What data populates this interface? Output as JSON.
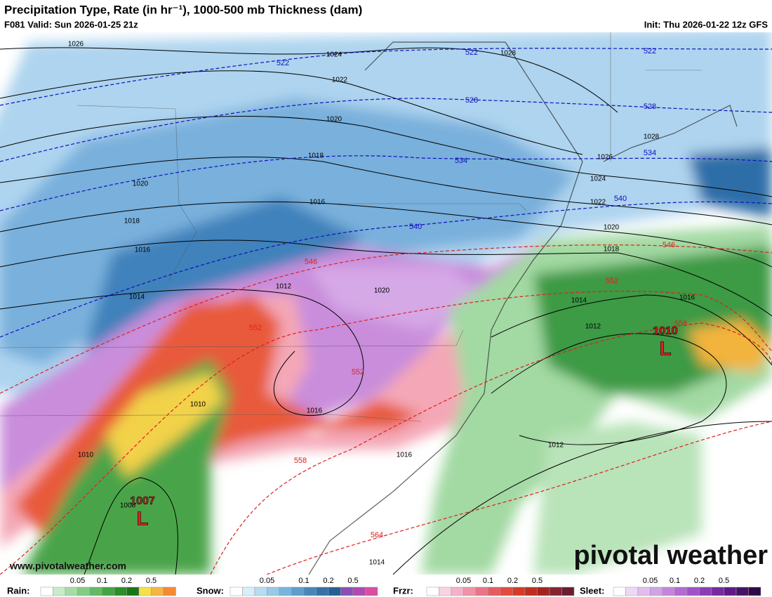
{
  "header": {
    "title": "Precipitation Type, Rate (in hr⁻¹), 1000-500 mb Thickness (dam)",
    "valid": "F081 Valid: Sun 2026-01-25 21z",
    "init": "Init: Thu 2026-01-22 12z GFS"
  },
  "map": {
    "isobar_labels": [
      "1026",
      "1024",
      "1022",
      "1020",
      "1018",
      "1020",
      "1018",
      "1016",
      "1016",
      "1014",
      "1012",
      "1020",
      "1028",
      "1028",
      "1026",
      "1024",
      "1022",
      "1020",
      "1018",
      "1016",
      "1014",
      "1012",
      "1012",
      "1010",
      "1010",
      "1008",
      "1016",
      "1016",
      "1014"
    ],
    "thickness_labels": [
      {
        "label": "522",
        "color": "#1010c0"
      },
      {
        "label": "522",
        "color": "#1010c0"
      },
      {
        "label": "522",
        "color": "#1010c0"
      },
      {
        "label": "528",
        "color": "#1010c0"
      },
      {
        "label": "528",
        "color": "#1010c0"
      },
      {
        "label": "534",
        "color": "#1010c0"
      },
      {
        "label": "534",
        "color": "#1010c0"
      },
      {
        "label": "540",
        "color": "#1010c0"
      },
      {
        "label": "540",
        "color": "#1010c0"
      },
      {
        "label": "546",
        "color": "#e02020"
      },
      {
        "label": "546",
        "color": "#e02020"
      },
      {
        "label": "552",
        "color": "#e02020"
      },
      {
        "label": "552",
        "color": "#e02020"
      },
      {
        "label": "552",
        "color": "#e02020"
      },
      {
        "label": "558",
        "color": "#e02020"
      },
      {
        "label": "558",
        "color": "#e02020"
      },
      {
        "label": "564",
        "color": "#e02020"
      }
    ],
    "lows": [
      {
        "pressure": "1007",
        "symbol": "L"
      },
      {
        "pressure": "1010",
        "symbol": "L"
      }
    ],
    "website": "www.pivotalweather.com",
    "brand": "pivotal weather"
  },
  "legend": [
    {
      "name": "Rain:",
      "colors": [
        "#ffffff",
        "#c8ecc8",
        "#a6dca6",
        "#84cc84",
        "#62ba62",
        "#41a641",
        "#2a8e2a",
        "#197519",
        "#f5e04a",
        "#f7b540",
        "#f58a35"
      ],
      "ticks": [
        "0.05",
        "0.1",
        "0.2",
        "0.5"
      ],
      "tick_index": [
        3,
        5,
        7,
        9
      ]
    },
    {
      "name": "Snow:",
      "colors": [
        "#ffffff",
        "#d8eefa",
        "#b7dcf2",
        "#97c9e8",
        "#78b4dc",
        "#5d9ecd",
        "#4687bb",
        "#3471a8",
        "#265e95",
        "#8a4fb5",
        "#b04ab0",
        "#d64fa3"
      ],
      "ticks": [
        "0.05",
        "0.1",
        "0.2",
        "0.5"
      ],
      "tick_index": [
        3,
        6,
        8,
        10
      ]
    },
    {
      "name": "Frzr:",
      "colors": [
        "#ffffff",
        "#f9d4e0",
        "#f3b2c8",
        "#ee93a8",
        "#ea7585",
        "#e75a61",
        "#e54a3c",
        "#d63b25",
        "#bf2e20",
        "#a3241e",
        "#862430",
        "#6a1c30"
      ],
      "ticks": [
        "0.05",
        "0.1",
        "0.2",
        "0.5"
      ],
      "tick_index": [
        3,
        5,
        7,
        9
      ]
    },
    {
      "name": "Sleet:",
      "colors": [
        "#ffffff",
        "#efd8f5",
        "#e1bdee",
        "#d3a1e6",
        "#c485dd",
        "#b46ad2",
        "#a152c5",
        "#8c3db5",
        "#7629a0",
        "#5e1a85",
        "#461267",
        "#2e0b48"
      ],
      "ticks": [
        "0.05",
        "0.1",
        "0.2",
        "0.5"
      ],
      "tick_index": [
        3,
        5,
        7,
        9
      ]
    }
  ]
}
